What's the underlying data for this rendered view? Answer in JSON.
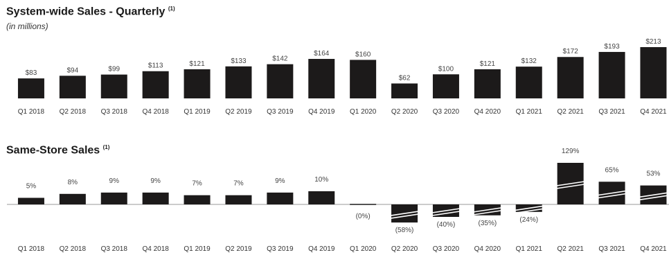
{
  "chart_data": [
    {
      "type": "bar",
      "title": "System-wide Sales - Quarterly",
      "title_note": "(1)",
      "subtitle": "(in millions)",
      "categories": [
        "Q1 2018",
        "Q2 2018",
        "Q3 2018",
        "Q4 2018",
        "Q1 2019",
        "Q2 2019",
        "Q3 2019",
        "Q4 2019",
        "Q1 2020",
        "Q2 2020",
        "Q3 2020",
        "Q4 2020",
        "Q1 2021",
        "Q2 2021",
        "Q3 2021",
        "Q4 2021"
      ],
      "values": [
        83,
        94,
        99,
        113,
        121,
        133,
        142,
        164,
        160,
        62,
        100,
        121,
        132,
        172,
        193,
        213
      ],
      "labels": [
        "$83",
        "$94",
        "$99",
        "$113",
        "$121",
        "$133",
        "$142",
        "$164",
        "$160",
        "$62",
        "$100",
        "$121",
        "$132",
        "$172",
        "$193",
        "$213"
      ],
      "ylim": [
        0,
        213
      ],
      "bar_color": "#1c1a1a"
    },
    {
      "type": "bar",
      "title": "Same-Store Sales",
      "title_note": "(1)",
      "categories": [
        "Q1 2018",
        "Q2 2018",
        "Q3 2018",
        "Q4 2018",
        "Q1 2019",
        "Q2 2019",
        "Q3 2019",
        "Q4 2019",
        "Q1 2020",
        "Q2 2020",
        "Q3 2020",
        "Q4 2020",
        "Q1 2021",
        "Q2 2021",
        "Q3 2021",
        "Q4 2021"
      ],
      "values": [
        5,
        8,
        9,
        9,
        7,
        7,
        9,
        10,
        0,
        -58,
        -40,
        -35,
        -24,
        129,
        65,
        53
      ],
      "labels": [
        "5%",
        "8%",
        "9%",
        "9%",
        "7%",
        "7%",
        "9%",
        "10%",
        "(0%)",
        "(58%)",
        "(40%)",
        "(35%)",
        "(24%)",
        "129%",
        "65%",
        "53%"
      ],
      "axis_break": true,
      "bar_color": "#1c1a1a"
    }
  ]
}
